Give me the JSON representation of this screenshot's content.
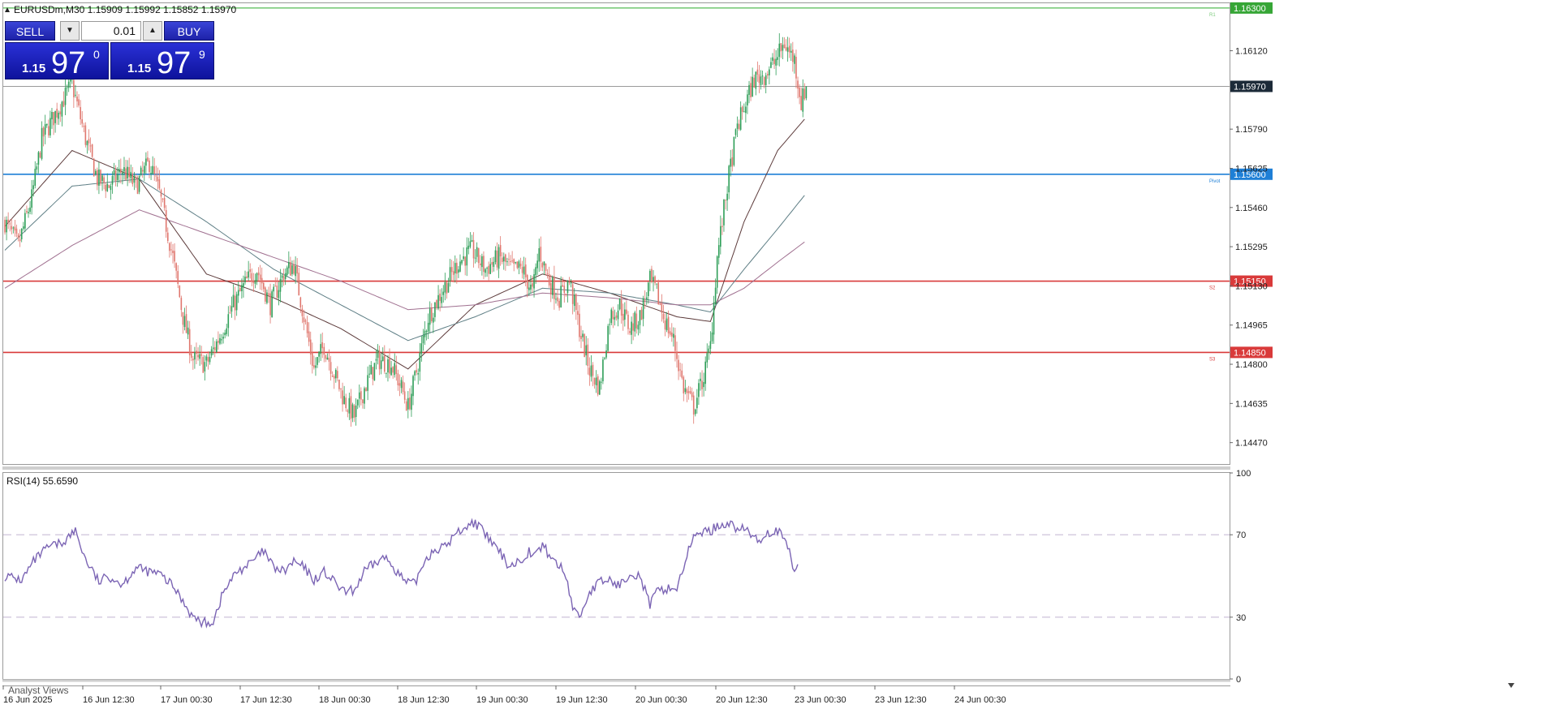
{
  "header": {
    "symbol_line": "EURUSDm,M30  1.15909 1.15992 1.15852 1.15970",
    "rsi_label": "RSI(14) 55.6590",
    "bottom_tab": "Analyst Views"
  },
  "trade_panel": {
    "sell_label": "SELL",
    "buy_label": "BUY",
    "lot": "0.01",
    "sell_small": "1.15",
    "sell_big": "97",
    "sell_sup": "0",
    "buy_small": "1.15",
    "buy_big": "97",
    "buy_sup": "9"
  },
  "colors": {
    "bull": "#2e9e58",
    "bear": "#e0776e",
    "pivot": "#1e7fd6",
    "support": "#d93a3a",
    "resistance": "#7ccb7c",
    "bid_line": "#9a9a9a",
    "ma_fast": "#5c3a3a",
    "ma_mid": "#5f7f86",
    "ma_slow": "#a07090",
    "rsi": "#7b64b4",
    "rsi_level": "#c8bcd6"
  },
  "chart_data": [
    {
      "type": "candlestick",
      "symbol": "EURUSDm",
      "timeframe": "M30",
      "ohlc_readout": {
        "open": 1.15909,
        "high": 1.15992,
        "low": 1.15852,
        "close": 1.1597
      },
      "ylim": [
        1.1438,
        1.1632
      ],
      "y_ticks": [
        "1.16120",
        "1.15790",
        "1.15625",
        "1.15460",
        "1.15295",
        "1.15130",
        "1.14965",
        "1.14800",
        "1.14635",
        "1.14470"
      ],
      "x_ticks": [
        "16 Jun 2025",
        "16 Jun 12:30",
        "17 Jun 00:30",
        "17 Jun 12:30",
        "18 Jun 00:30",
        "18 Jun 12:30",
        "19 Jun 00:30",
        "19 Jun 12:30",
        "20 Jun 00:30",
        "20 Jun 12:30",
        "23 Jun 00:30",
        "23 Jun 12:30",
        "24 Jun 00:30"
      ],
      "horizontal_lines": [
        {
          "price": 1.163,
          "tag": "1.16300",
          "label": "R1",
          "color": "#7ccb7c"
        },
        {
          "price": 1.1597,
          "tag": "1.15970",
          "label": "",
          "color": "#9a9a9a"
        },
        {
          "price": 1.156,
          "tag": "1.15600",
          "label": "Pivot",
          "color": "#1e7fd6"
        },
        {
          "price": 1.1515,
          "tag": "1.15150",
          "label": "S2",
          "color": "#d93a3a"
        },
        {
          "price": 1.1485,
          "tag": "1.14850",
          "label": "S3",
          "color": "#d93a3a"
        }
      ],
      "close_path": [
        [
          0,
          1.154
        ],
        [
          8,
          1.153
        ],
        [
          16,
          1.155
        ],
        [
          22,
          1.1575
        ],
        [
          32,
          1.1588
        ],
        [
          40,
          1.1598
        ],
        [
          48,
          1.1575
        ],
        [
          55,
          1.1558
        ],
        [
          62,
          1.1555
        ],
        [
          70,
          1.1562
        ],
        [
          78,
          1.1555
        ],
        [
          86,
          1.1565
        ],
        [
          92,
          1.1552
        ],
        [
          100,
          1.1525
        ],
        [
          106,
          1.15
        ],
        [
          112,
          1.1482
        ],
        [
          120,
          1.148
        ],
        [
          128,
          1.1492
        ],
        [
          136,
          1.1505
        ],
        [
          144,
          1.1515
        ],
        [
          150,
          1.152
        ],
        [
          158,
          1.1505
        ],
        [
          166,
          1.1518
        ],
        [
          172,
          1.1522
        ],
        [
          178,
          1.15
        ],
        [
          184,
          1.1478
        ],
        [
          190,
          1.1488
        ],
        [
          196,
          1.1476
        ],
        [
          202,
          1.1465
        ],
        [
          208,
          1.1458
        ],
        [
          214,
          1.147
        ],
        [
          222,
          1.1482
        ],
        [
          230,
          1.148
        ],
        [
          236,
          1.147
        ],
        [
          240,
          1.1462
        ],
        [
          246,
          1.148
        ],
        [
          252,
          1.15
        ],
        [
          262,
          1.1513
        ],
        [
          270,
          1.1523
        ],
        [
          278,
          1.1528
        ],
        [
          286,
          1.152
        ],
        [
          294,
          1.1525
        ],
        [
          302,
          1.152
        ],
        [
          308,
          1.152
        ],
        [
          314,
          1.151
        ],
        [
          318,
          1.1528
        ],
        [
          324,
          1.1515
        ],
        [
          330,
          1.1508
        ],
        [
          336,
          1.1515
        ],
        [
          342,
          1.1495
        ],
        [
          348,
          1.1478
        ],
        [
          354,
          1.147
        ],
        [
          360,
          1.15
        ],
        [
          366,
          1.1505
        ],
        [
          372,
          1.1495
        ],
        [
          378,
          1.15
        ],
        [
          384,
          1.1515
        ],
        [
          388,
          1.151
        ],
        [
          392,
          1.15
        ],
        [
          398,
          1.149
        ],
        [
          404,
          1.147
        ],
        [
          410,
          1.1462
        ],
        [
          416,
          1.1475
        ],
        [
          420,
          1.1488
        ],
        [
          424,
          1.1525
        ],
        [
          430,
          1.1555
        ],
        [
          436,
          1.158
        ],
        [
          440,
          1.1588
        ],
        [
          446,
          1.16
        ],
        [
          452,
          1.1602
        ],
        [
          458,
          1.1607
        ],
        [
          464,
          1.1615
        ],
        [
          470,
          1.1608
        ],
        [
          474,
          1.159
        ],
        [
          477,
          1.1597
        ]
      ],
      "moving_averages": [
        {
          "points": [
            [
              0,
              1.1538
            ],
            [
              40,
              1.157
            ],
            [
              80,
              1.1558
            ],
            [
              120,
              1.1518
            ],
            [
              160,
              1.1508
            ],
            [
              200,
              1.1495
            ],
            [
              240,
              1.1478
            ],
            [
              280,
              1.1505
            ],
            [
              320,
              1.1518
            ],
            [
              360,
              1.151
            ],
            [
              400,
              1.15
            ],
            [
              420,
              1.1498
            ],
            [
              440,
              1.154
            ],
            [
              460,
              1.157
            ],
            [
              477,
              1.1584
            ]
          ]
        },
        {
          "points": [
            [
              0,
              1.1528
            ],
            [
              40,
              1.1555
            ],
            [
              80,
              1.1558
            ],
            [
              120,
              1.154
            ],
            [
              160,
              1.152
            ],
            [
              200,
              1.1505
            ],
            [
              240,
              1.149
            ],
            [
              280,
              1.15
            ],
            [
              320,
              1.1512
            ],
            [
              360,
              1.151
            ],
            [
              400,
              1.1505
            ],
            [
              420,
              1.1502
            ],
            [
              440,
              1.152
            ],
            [
              460,
              1.1537
            ],
            [
              477,
              1.1552
            ]
          ]
        },
        {
          "points": [
            [
              0,
              1.1512
            ],
            [
              40,
              1.153
            ],
            [
              80,
              1.1545
            ],
            [
              120,
              1.1535
            ],
            [
              160,
              1.1525
            ],
            [
              200,
              1.1515
            ],
            [
              240,
              1.1503
            ],
            [
              280,
              1.1505
            ],
            [
              320,
              1.151
            ],
            [
              360,
              1.1508
            ],
            [
              400,
              1.1505
            ],
            [
              420,
              1.1505
            ],
            [
              440,
              1.1512
            ],
            [
              460,
              1.1523
            ],
            [
              477,
              1.1532
            ]
          ]
        }
      ]
    },
    {
      "type": "line",
      "name": "RSI(14)",
      "ylim": [
        0,
        100
      ],
      "y_ticks": [
        "100",
        "70",
        "30",
        "0"
      ],
      "levels": [
        70,
        30
      ],
      "last_value": 55.659,
      "points": [
        [
          0,
          50
        ],
        [
          10,
          48
        ],
        [
          18,
          58
        ],
        [
          26,
          64
        ],
        [
          34,
          66
        ],
        [
          42,
          72
        ],
        [
          48,
          58
        ],
        [
          56,
          47
        ],
        [
          62,
          50
        ],
        [
          70,
          46
        ],
        [
          78,
          54
        ],
        [
          86,
          52
        ],
        [
          92,
          51
        ],
        [
          100,
          45
        ],
        [
          106,
          38
        ],
        [
          112,
          30
        ],
        [
          118,
          27
        ],
        [
          124,
          28
        ],
        [
          130,
          42
        ],
        [
          138,
          52
        ],
        [
          146,
          56
        ],
        [
          154,
          62
        ],
        [
          160,
          54
        ],
        [
          166,
          52
        ],
        [
          172,
          57
        ],
        [
          178,
          54
        ],
        [
          184,
          48
        ],
        [
          190,
          52
        ],
        [
          196,
          47
        ],
        [
          202,
          42
        ],
        [
          208,
          43
        ],
        [
          214,
          52
        ],
        [
          220,
          56
        ],
        [
          226,
          59
        ],
        [
          232,
          54
        ],
        [
          238,
          47
        ],
        [
          244,
          46
        ],
        [
          250,
          58
        ],
        [
          256,
          63
        ],
        [
          262,
          64
        ],
        [
          268,
          70
        ],
        [
          274,
          74
        ],
        [
          280,
          76
        ],
        [
          286,
          70
        ],
        [
          292,
          64
        ],
        [
          296,
          60
        ],
        [
          300,
          55
        ],
        [
          306,
          57
        ],
        [
          312,
          62
        ],
        [
          316,
          60
        ],
        [
          320,
          65
        ],
        [
          326,
          58
        ],
        [
          330,
          55
        ],
        [
          334,
          50
        ],
        [
          338,
          35
        ],
        [
          342,
          30
        ],
        [
          348,
          42
        ],
        [
          354,
          47
        ],
        [
          360,
          48
        ],
        [
          366,
          45
        ],
        [
          372,
          52
        ],
        [
          378,
          50
        ],
        [
          384,
          36
        ],
        [
          388,
          42
        ],
        [
          394,
          44
        ],
        [
          400,
          44
        ],
        [
          406,
          60
        ],
        [
          412,
          72
        ],
        [
          418,
          71
        ],
        [
          424,
          74
        ],
        [
          430,
          76
        ],
        [
          436,
          73
        ],
        [
          442,
          72
        ],
        [
          448,
          67
        ],
        [
          454,
          71
        ],
        [
          460,
          72
        ],
        [
          466,
          64
        ],
        [
          470,
          52
        ],
        [
          472,
          55.66
        ]
      ]
    }
  ]
}
